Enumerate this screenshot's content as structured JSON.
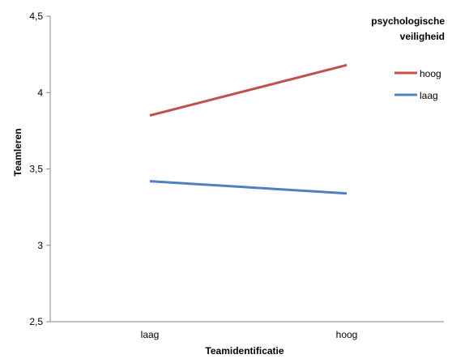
{
  "chart_data": {
    "type": "line",
    "title": "",
    "categories": [
      "laag",
      "hoog"
    ],
    "xlabel": "Teamidentificatie",
    "ylabel": "Teamleren",
    "ylim": [
      2.5,
      4.5
    ],
    "yticks": [
      "2,5",
      "3",
      "3,5",
      "4",
      "4,5"
    ],
    "ytick_values": [
      2.5,
      3,
      3.5,
      4,
      4.5
    ],
    "grid": false,
    "legend": {
      "title_line1": "psychologische",
      "title_line2": "veiligheid",
      "placement": "right"
    },
    "series": [
      {
        "name": "hoog",
        "color": "#c0504d",
        "values": [
          3.85,
          4.18
        ]
      },
      {
        "name": "laag",
        "color": "#4f81bd",
        "values": [
          3.42,
          3.34
        ]
      }
    ]
  }
}
